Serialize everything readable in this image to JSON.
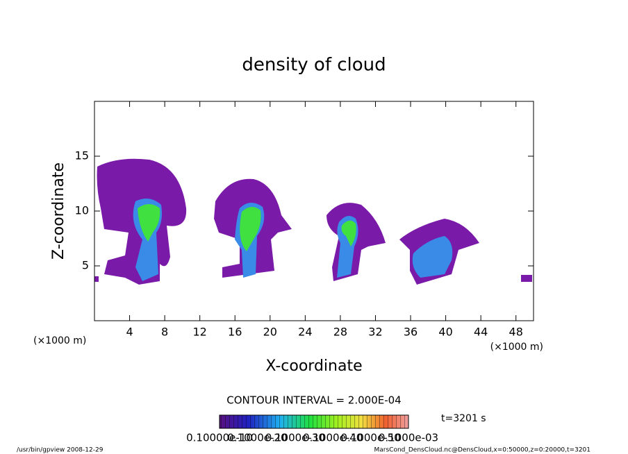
{
  "chart_data": {
    "type": "contour",
    "title": "density of cloud",
    "xlabel": "X-coordinate",
    "ylabel": "Z-coordinate",
    "x_unit": "(×1000 m)",
    "xlim": [
      0,
      50
    ],
    "xticks": [
      4,
      8,
      12,
      16,
      20,
      24,
      28,
      32,
      36,
      40,
      44,
      48
    ],
    "ylim": [
      0,
      20
    ],
    "yticks": [
      5,
      10,
      15
    ],
    "contour_interval": "CONTOUR INTERVAL = 2.000E-04",
    "time": "t=3201 s",
    "colorbar_labels": [
      "0.10000e-10",
      "0.1000e-20",
      "0.1000e-30",
      "0.1000e-40",
      "0.1000e-50",
      "0.1000e-03"
    ],
    "footer_left": "/usr/bin/gpview   2008-12-29",
    "footer_right": "MarsCond_DensCloud.nc@DensCloud,x=0:50000,z=0:20000,t=3201"
  }
}
